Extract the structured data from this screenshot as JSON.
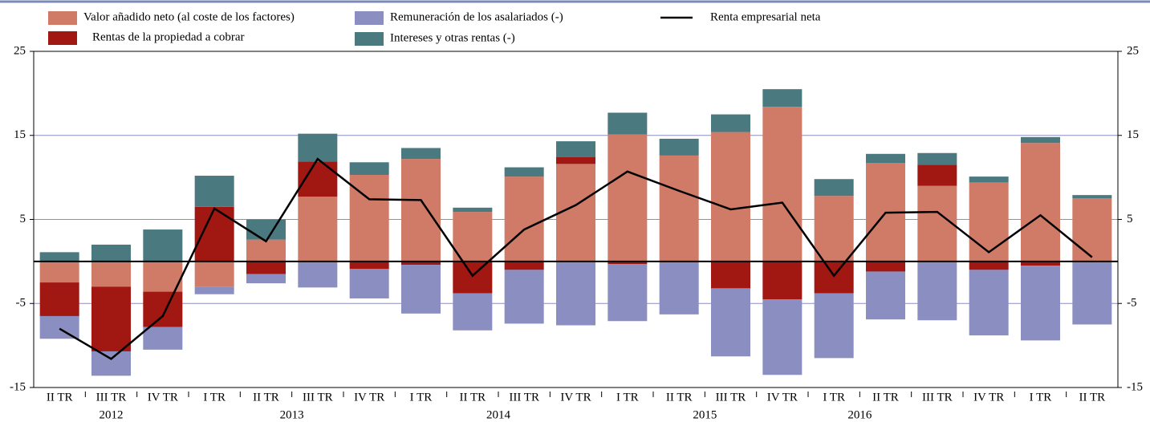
{
  "chart_data": {
    "type": "bar",
    "stacked": true,
    "categories": [
      "II TR",
      "III TR",
      "IV TR",
      "I TR",
      "II TR",
      "III TR",
      "IV TR",
      "I TR",
      "II TR",
      "III TR",
      "IV TR",
      "I TR",
      "II TR",
      "III TR",
      "IV TR",
      "I TR",
      "II TR",
      "III TR",
      "IV TR",
      "I TR",
      "II TR"
    ],
    "year_groups": [
      {
        "label": "2012",
        "span": 3
      },
      {
        "label": "2013",
        "span": 4
      },
      {
        "label": "2014",
        "span": 4
      },
      {
        "label": "2015",
        "span": 4
      },
      {
        "label": "2016",
        "span": 2
      }
    ],
    "series": [
      {
        "name": "Valor añadido neto (al coste de los factores)",
        "color": "#cf7b68",
        "type": "bar",
        "values": [
          -2.5,
          -3.0,
          -3.6,
          -3.0,
          2.6,
          7.7,
          10.3,
          12.2,
          5.9,
          10.1,
          11.6,
          15.1,
          12.6,
          15.4,
          18.4,
          7.8,
          11.7,
          9.0,
          9.4,
          14.1,
          7.5
        ]
      },
      {
        "name": "Rentas de la propiedad a cobrar",
        "color": "#a11712",
        "type": "bar",
        "values": [
          -4.0,
          -7.7,
          -4.2,
          6.5,
          -1.5,
          4.2,
          -0.9,
          -0.4,
          -3.8,
          -1.0,
          0.8,
          -0.3,
          -0.1,
          -3.2,
          -4.5,
          -3.8,
          -1.2,
          2.5,
          -1.0,
          -0.5,
          0
        ]
      },
      {
        "name": "Remuneración de los asalariados (-)",
        "color": "#8b8ec0",
        "type": "bar",
        "values": [
          -2.7,
          -2.9,
          -2.7,
          -0.9,
          -1.1,
          -3.1,
          -3.5,
          -5.8,
          -4.4,
          -6.4,
          -7.6,
          -6.8,
          -6.2,
          -8.1,
          -9.0,
          -7.7,
          -5.7,
          -7.0,
          -7.8,
          -8.9,
          -7.5
        ]
      },
      {
        "name": "Intereses y otras rentas (-)",
        "color": "#4a7a80",
        "type": "bar",
        "values": [
          1.1,
          2.0,
          3.8,
          3.7,
          2.4,
          3.3,
          1.5,
          1.3,
          0.5,
          1.1,
          1.9,
          2.6,
          2.0,
          2.1,
          2.1,
          2.0,
          1.1,
          1.4,
          0.7,
          0.7,
          0.4
        ]
      },
      {
        "name": "Renta empresarial neta",
        "color": "#000000",
        "type": "line",
        "values": [
          -8.0,
          -11.6,
          -6.5,
          6.3,
          2.4,
          12.2,
          7.4,
          7.3,
          -1.7,
          3.8,
          6.7,
          10.7,
          8.4,
          6.2,
          7.0,
          -1.7,
          5.8,
          5.9,
          1.1,
          5.5,
          0.5
        ]
      }
    ],
    "ylim": [
      -15,
      25
    ],
    "yticks": [
      -15,
      -5,
      5,
      15,
      25
    ],
    "y2lim": [
      -15,
      25
    ],
    "y2ticks": [
      -15,
      -5,
      5,
      15,
      25
    ],
    "grid": true,
    "legend": "top"
  }
}
